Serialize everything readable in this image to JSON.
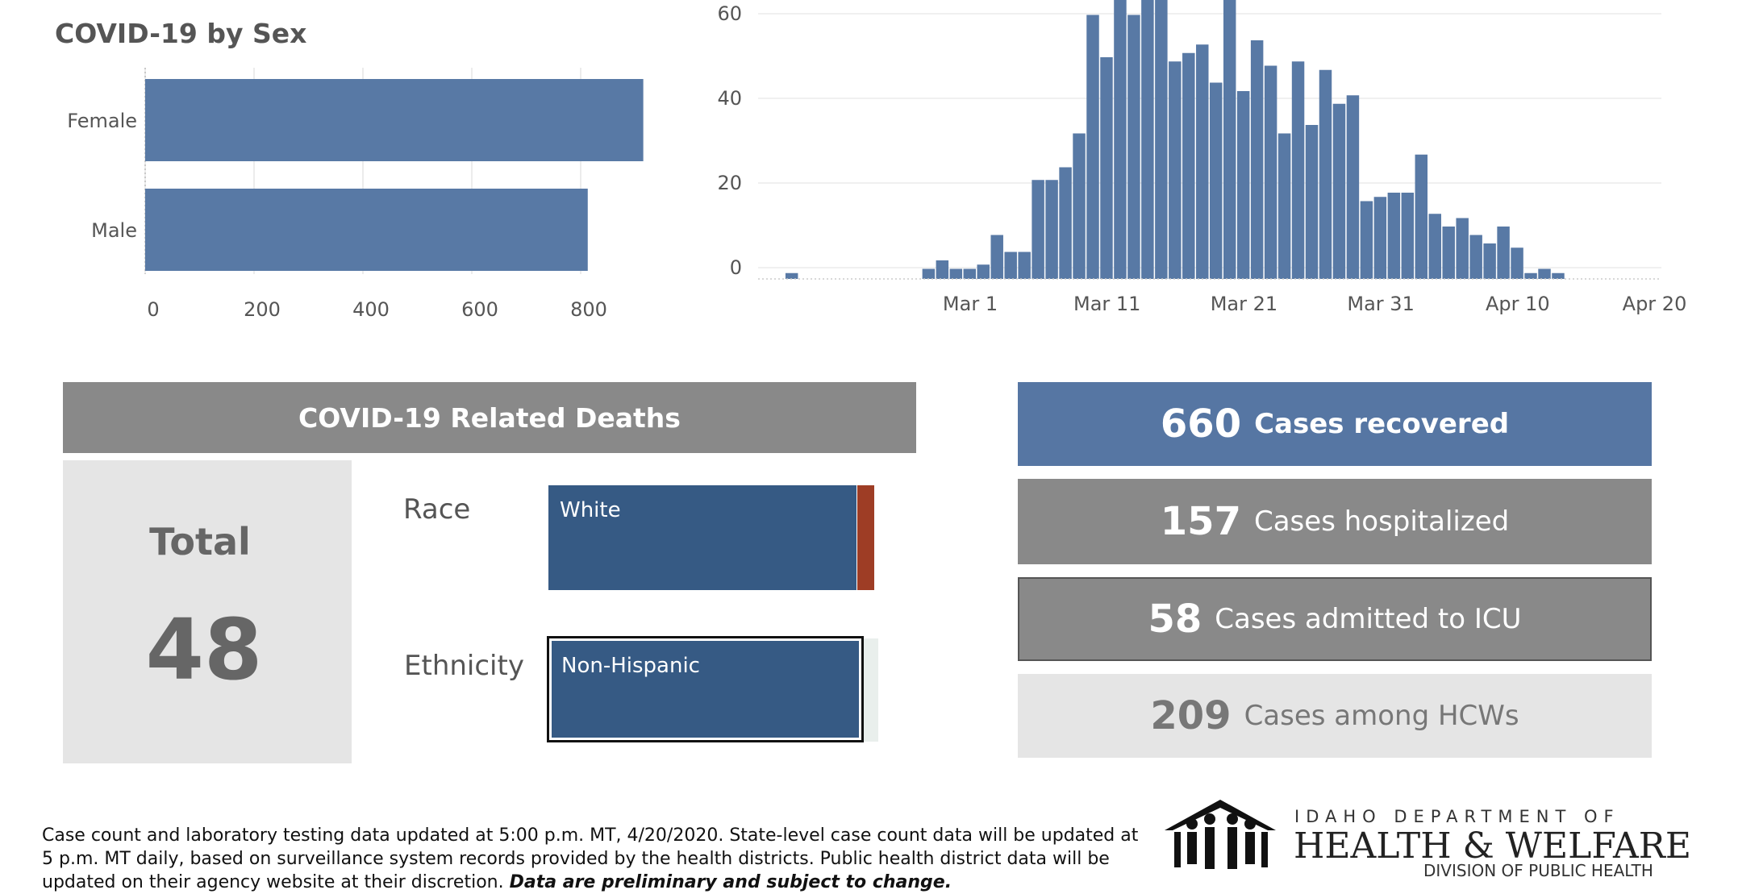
{
  "sex_chart": {
    "title": "COVID-19 by Sex",
    "chart_data": {
      "type": "bar",
      "orientation": "horizontal",
      "categories": [
        "Female",
        "Male"
      ],
      "values": [
        915,
        813
      ],
      "xlim": [
        0,
        960
      ],
      "x_ticks": [
        "0",
        "200",
        "400",
        "600",
        "800"
      ],
      "grid": true,
      "color": "#5879a5"
    }
  },
  "timeline_chart": {
    "chart_data": {
      "type": "bar",
      "ylim": [
        0,
        60
      ],
      "y_ticks": [
        "0",
        "20",
        "40",
        "60"
      ],
      "x_ticks": [
        "Mar 1",
        "Mar 11",
        "Mar 21",
        "Mar 31",
        "Apr 10",
        "Apr 20"
      ],
      "x": [
        "Feb 15",
        "Feb 16",
        "Feb 17",
        "Feb 18",
        "Feb 19",
        "Feb 20",
        "Feb 21",
        "Feb 22",
        "Feb 23",
        "Feb 24",
        "Feb 25",
        "Feb 26",
        "Feb 27",
        "Feb 28",
        "Feb 29",
        "Mar 1",
        "Mar 2",
        "Mar 3",
        "Mar 4",
        "Mar 5",
        "Mar 6",
        "Mar 7",
        "Mar 8",
        "Mar 9",
        "Mar 10",
        "Mar 11",
        "Mar 12",
        "Mar 13",
        "Mar 14",
        "Mar 15",
        "Mar 16",
        "Mar 17",
        "Mar 18",
        "Mar 19",
        "Mar 20",
        "Mar 21",
        "Mar 22",
        "Mar 23",
        "Mar 24",
        "Mar 25",
        "Mar 26",
        "Mar 27",
        "Mar 28",
        "Mar 29",
        "Mar 30",
        "Mar 31",
        "Apr 1",
        "Apr 2",
        "Apr 3",
        "Apr 4",
        "Apr 5",
        "Apr 6",
        "Apr 7",
        "Apr 8",
        "Apr 9",
        "Apr 10",
        "Apr 11",
        "Apr 12",
        "Apr 13",
        "Apr 14",
        "Apr 15",
        "Apr 16",
        "Apr 17",
        "Apr 18",
        "Apr 19",
        "Apr 20"
      ],
      "values": [
        0,
        0,
        1,
        0,
        0,
        0,
        0,
        0,
        0,
        0,
        0,
        0,
        2,
        4,
        2,
        2,
        3,
        10,
        6,
        6,
        23,
        23,
        26,
        34,
        62,
        52,
        66,
        62,
        66,
        66,
        51,
        53,
        55,
        46,
        66,
        44,
        56,
        50,
        34,
        51,
        36,
        49,
        41,
        43,
        18,
        19,
        20,
        20,
        29,
        15,
        12,
        14,
        10,
        8,
        12,
        7,
        1,
        2,
        1,
        0,
        0,
        0,
        0,
        0,
        0,
        0
      ],
      "color": "#5879a5"
    }
  },
  "deaths": {
    "header": "COVID-19 Related Deaths",
    "total_label": "Total",
    "total_value": "48",
    "race_label": "Race",
    "race_bar_label": "White",
    "ethnicity_label": "Ethnicity",
    "ethnicity_bar_label": "Non-Hispanic"
  },
  "stats": {
    "recovered": {
      "num": "660",
      "label": "Cases recovered"
    },
    "hospitalized": {
      "num": "157",
      "label": "Cases hospitalized"
    },
    "icu": {
      "num": "58",
      "label": "Cases admitted to ICU"
    },
    "hcw": {
      "num": "209",
      "label": "Cases among HCWs"
    }
  },
  "footer": {
    "note": "Case count and laboratory testing data updated at 5:00 p.m. MT, 4/20/2020. State-level case count data will be updated at 5 p.m. MT daily, based on surveillance system records provided by the health districts. Public health district data will be updated on their agency website at their discretion.",
    "note_emphasis": "Data are preliminary and subject to change.",
    "logo_top": "IDAHO DEPARTMENT OF",
    "logo_main": "HEALTH & WELFARE",
    "logo_sub": "DIVISION OF PUBLIC HEALTH"
  },
  "colors": {
    "bar_blue": "#5879a5",
    "deaths_blue": "#365a84",
    "race_other": "#9e3d25",
    "header_gray": "#898989",
    "panel_light": "#e5e5e5"
  }
}
